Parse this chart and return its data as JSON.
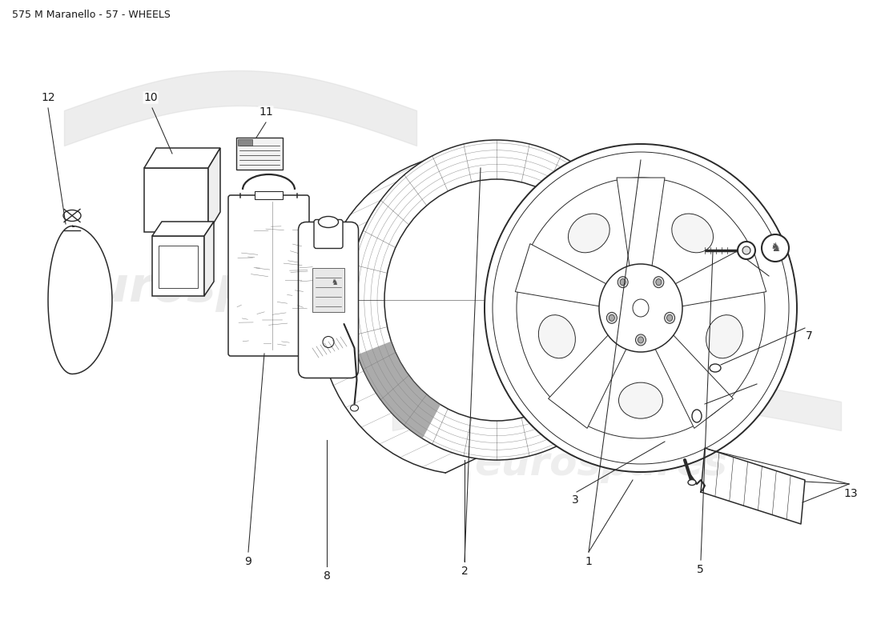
{
  "title": "575 M Maranello - 57 - WHEELS",
  "background_color": "#ffffff",
  "watermark_text": "eurospares",
  "line_color": "#2a2a2a",
  "text_color": "#1a1a1a",
  "title_fontsize": 9,
  "label_fontsize": 10
}
